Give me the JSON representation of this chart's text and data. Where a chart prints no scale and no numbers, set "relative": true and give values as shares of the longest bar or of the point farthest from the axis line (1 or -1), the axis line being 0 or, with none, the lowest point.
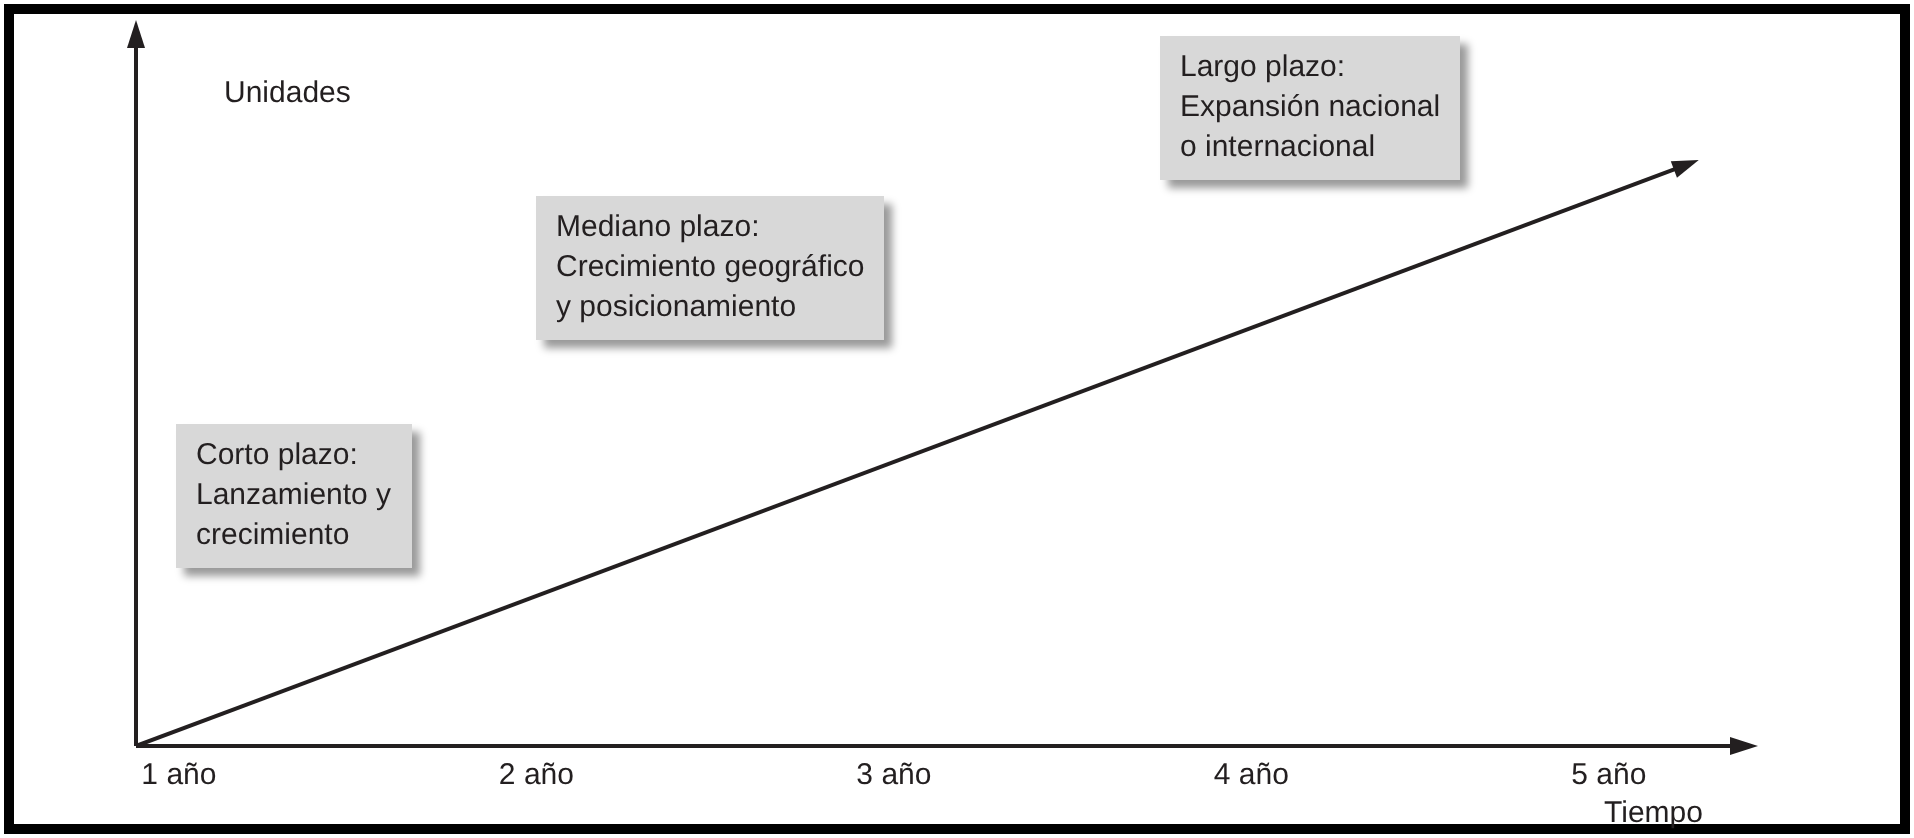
{
  "chart_data": {
    "type": "line",
    "relative": true,
    "ylabel": "Unidades",
    "xlabel": "Tiempo",
    "x": [
      0.88,
      5.22
    ],
    "series": [
      {
        "color": "#231f20",
        "values": [
          0,
          1
        ]
      }
    ],
    "xlim": [
      0.88,
      5.35
    ],
    "xticks": [
      {
        "value": 1,
        "label": "1 año"
      },
      {
        "value": 2,
        "label": "2 año"
      },
      {
        "value": 3,
        "label": "3 año"
      },
      {
        "value": 4,
        "label": "4 año"
      },
      {
        "value": 5,
        "label": "5 año"
      }
    ],
    "grid": false,
    "legend": false,
    "line_style": "solid",
    "annotations": [
      "Corto plazo:\nLanzamiento y\ncrecimiento",
      "Mediano plazo:\nCrecimiento geográfico\ny posicionamiento",
      "Largo plazo:\nExpansión nacional\no internacional"
    ]
  }
}
